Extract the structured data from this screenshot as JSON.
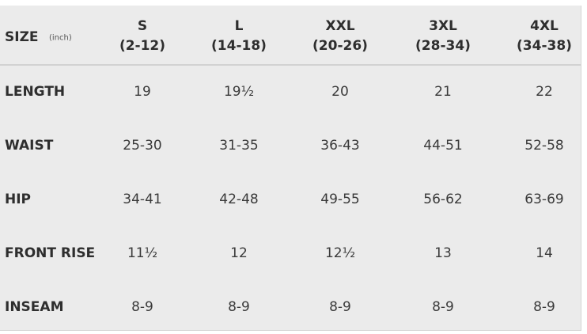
{
  "header": {
    "label": "SIZE",
    "unit": "(inch)"
  },
  "columns": [
    {
      "size": "S",
      "range": "(2-12)"
    },
    {
      "size": "L",
      "range": "(14-18)"
    },
    {
      "size": "XXL",
      "range": "(20-26)"
    },
    {
      "size": "3XL",
      "range": "(28-34)"
    },
    {
      "size": "4XL",
      "range": "(34-38)"
    }
  ],
  "rows": [
    {
      "label": "LENGTH",
      "values": [
        "19",
        "19½",
        "20",
        "21",
        "22"
      ]
    },
    {
      "label": "WAIST",
      "values": [
        "25-30",
        "31-35",
        "36-43",
        "44-51",
        "52-58"
      ]
    },
    {
      "label": "HIP",
      "values": [
        "34-41",
        "42-48",
        "49-55",
        "56-62",
        "63-69"
      ]
    },
    {
      "label": "FRONT RISE",
      "values": [
        "11½",
        "12",
        "12½",
        "13",
        "14"
      ]
    },
    {
      "label": "INSEAM",
      "values": [
        "8-9",
        "8-9",
        "8-9",
        "8-9",
        "8-9"
      ]
    }
  ]
}
